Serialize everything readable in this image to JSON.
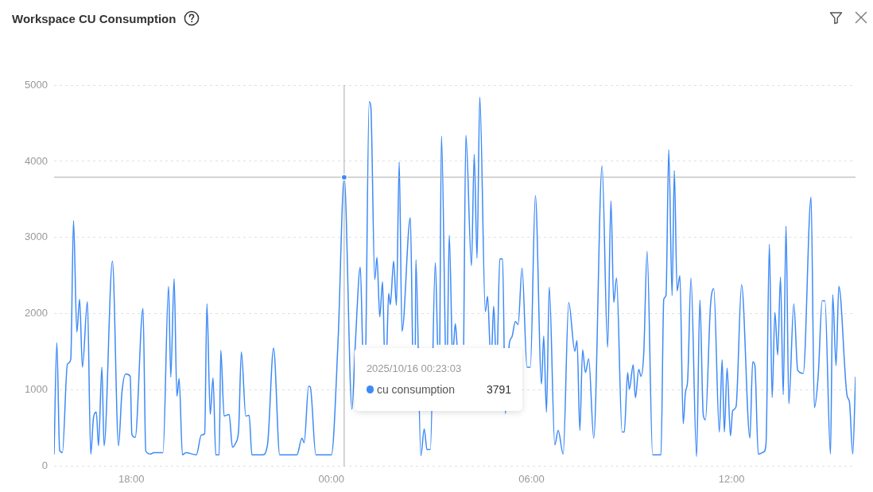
{
  "chart_data": {
    "type": "line",
    "title": "Workspace CU Consumption",
    "x": [
      "2025-10-15T15:41",
      "2025-10-15T15:46",
      "2025-10-15T15:51",
      "2025-10-15T15:56",
      "2025-10-15T16:05",
      "2025-10-15T16:11",
      "2025-10-15T16:16",
      "2025-10-15T16:22",
      "2025-10-15T16:27",
      "2025-10-15T16:32",
      "2025-10-15T16:41",
      "2025-10-15T16:47",
      "2025-10-15T16:52",
      "2025-10-15T16:57",
      "2025-10-15T17:01",
      "2025-10-15T17:07",
      "2025-10-15T17:11",
      "2025-10-15T17:26",
      "2025-10-15T17:37",
      "2025-10-15T17:43",
      "2025-10-15T17:50",
      "2025-10-15T17:58",
      "2025-10-15T18:01",
      "2025-10-15T18:07",
      "2025-10-15T18:21",
      "2025-10-15T18:26",
      "2025-10-15T18:35",
      "2025-10-15T18:40",
      "2025-10-15T18:57",
      "2025-10-15T19:07",
      "2025-10-15T19:11",
      "2025-10-15T19:17",
      "2025-10-15T19:22",
      "2025-10-15T19:26",
      "2025-10-15T19:32",
      "2025-10-15T19:38",
      "2025-10-15T19:57",
      "2025-10-15T20:06",
      "2025-10-15T20:12",
      "2025-10-15T20:16",
      "2025-10-15T20:22",
      "2025-10-15T20:27",
      "2025-10-15T20:32",
      "2025-10-15T20:38",
      "2025-10-15T20:41",
      "2025-10-15T20:47",
      "2025-10-15T20:56",
      "2025-10-15T21:02",
      "2025-10-15T21:08",
      "2025-10-15T21:13",
      "2025-10-15T21:18",
      "2025-10-15T21:26",
      "2025-10-15T21:32",
      "2025-10-15T21:37",
      "2025-10-15T21:56",
      "2025-10-15T22:05",
      "2025-10-15T22:16",
      "2025-10-15T22:27",
      "2025-10-15T22:58",
      "2025-10-15T23:07",
      "2025-10-15T23:11",
      "2025-10-15T23:19",
      "2025-10-15T23:22",
      "2025-10-15T23:32",
      "2025-10-16T00:00",
      "2025-10-16T00:12",
      "2025-10-16T00:23",
      "2025-10-16T00:37",
      "2025-10-16T00:43",
      "2025-10-16T00:52",
      "2025-10-16T00:56",
      "2025-10-16T00:59",
      "2025-10-16T01:02",
      "2025-10-16T01:08",
      "2025-10-16T01:11",
      "2025-10-16T01:18",
      "2025-10-16T01:22",
      "2025-10-16T01:27",
      "2025-10-16T01:32",
      "2025-10-16T01:35",
      "2025-10-16T01:38",
      "2025-10-16T01:40",
      "2025-10-16T01:43",
      "2025-10-16T01:46",
      "2025-10-16T01:52",
      "2025-10-16T01:57",
      "2025-10-16T02:02",
      "2025-10-16T02:07",
      "2025-10-16T02:22",
      "2025-10-16T02:26",
      "2025-10-16T02:29",
      "2025-10-16T02:31",
      "2025-10-16T02:32",
      "2025-10-16T02:41",
      "2025-10-16T02:47",
      "2025-10-16T02:52",
      "2025-10-16T02:58",
      "2025-10-16T03:07",
      "2025-10-16T03:11",
      "2025-10-16T03:13",
      "2025-10-16T03:15",
      "2025-10-16T03:18",
      "2025-10-16T03:25",
      "2025-10-16T03:26",
      "2025-10-16T03:29",
      "2025-10-16T03:32",
      "2025-10-16T03:37",
      "2025-10-16T03:38",
      "2025-10-16T03:40",
      "2025-10-16T03:43",
      "2025-10-16T03:46",
      "2025-10-16T03:52",
      "2025-10-16T03:58",
      "2025-10-16T04:02",
      "2025-10-16T04:12",
      "2025-10-16T04:17",
      "2025-10-16T04:22",
      "2025-10-16T04:27",
      "2025-10-16T04:37",
      "2025-10-16T04:41",
      "2025-10-16T04:45",
      "2025-10-16T04:47",
      "2025-10-16T04:49",
      "2025-10-16T04:52",
      "2025-10-16T04:55",
      "2025-10-16T04:56",
      "2025-10-16T04:59",
      "2025-10-16T05:03",
      "2025-10-16T05:08",
      "2025-10-16T05:13",
      "2025-10-16T05:20",
      "2025-10-16T05:25",
      "2025-10-16T05:31",
      "2025-10-16T05:36",
      "2025-10-16T05:43",
      "2025-10-16T05:52",
      "2025-10-16T05:58",
      "2025-10-16T06:07",
      "2025-10-16T06:18",
      "2025-10-16T06:22",
      "2025-10-16T06:27",
      "2025-10-16T06:32",
      "2025-10-16T06:42",
      "2025-10-16T06:48",
      "2025-10-16T06:57",
      "2025-10-16T07:07",
      "2025-10-16T07:18",
      "2025-10-16T07:22",
      "2025-10-16T07:27",
      "2025-10-16T07:32",
      "2025-10-16T07:37",
      "2025-10-16T07:43",
      "2025-10-16T07:52",
      "2025-10-16T08:07",
      "2025-10-16T08:17",
      "2025-10-16T08:23",
      "2025-10-16T08:28",
      "2025-10-16T08:33",
      "2025-10-16T08:43",
      "2025-10-16T08:47",
      "2025-10-16T08:53",
      "2025-10-16T08:56",
      "2025-10-16T09:03",
      "2025-10-16T09:07",
      "2025-10-16T09:13",
      "2025-10-16T09:17",
      "2025-10-16T09:22",
      "2025-10-16T09:28",
      "2025-10-16T09:38",
      "2025-10-16T09:53",
      "2025-10-16T09:58",
      "2025-10-16T10:02",
      "2025-10-16T10:07",
      "2025-10-16T10:13",
      "2025-10-16T10:17",
      "2025-10-16T10:22",
      "2025-10-16T10:27",
      "2025-10-16T10:33",
      "2025-10-16T10:37",
      "2025-10-16T10:41",
      "2025-10-16T10:47",
      "2025-10-16T10:57",
      "2025-10-16T11:03",
      "2025-10-16T11:09",
      "2025-10-16T11:13",
      "2025-10-16T11:22",
      "2025-10-16T11:28",
      "2025-10-16T11:38",
      "2025-10-16T11:43",
      "2025-10-16T11:47",
      "2025-10-16T11:52",
      "2025-10-16T11:58",
      "2025-10-16T12:02",
      "2025-10-16T12:08",
      "2025-10-16T12:18",
      "2025-10-16T12:33",
      "2025-10-16T12:38",
      "2025-10-16T12:42",
      "2025-10-16T12:48",
      "2025-10-16T12:58",
      "2025-10-16T13:02",
      "2025-10-16T13:08",
      "2025-10-16T13:13",
      "2025-10-16T13:18",
      "2025-10-16T13:23",
      "2025-10-16T13:28",
      "2025-10-16T13:33",
      "2025-10-16T13:38",
      "2025-10-16T13:43",
      "2025-10-16T13:52",
      "2025-10-16T13:59",
      "2025-10-16T14:09",
      "2025-10-16T14:23",
      "2025-10-16T14:29",
      "2025-10-16T14:36",
      "2025-10-16T14:43",
      "2025-10-16T14:48",
      "2025-10-16T14:58",
      "2025-10-16T15:02",
      "2025-10-16T15:08",
      "2025-10-16T15:13",
      "2025-10-16T15:28",
      "2025-10-16T15:32",
      "2025-10-16T15:38",
      "2025-10-16T15:43"
    ],
    "series": [
      {
        "name": "cu consumption",
        "color": "#3d8af7",
        "values": [
          160,
          1620,
          210,
          180,
          1340,
          1400,
          3220,
          1760,
          2190,
          1300,
          2160,
          160,
          640,
          710,
          270,
          1300,
          270,
          2690,
          270,
          960,
          1210,
          1180,
          420,
          380,
          2070,
          200,
          160,
          180,
          180,
          2360,
          1170,
          2460,
          920,
          1150,
          150,
          180,
          150,
          410,
          430,
          2130,
          680,
          1160,
          150,
          150,
          1520,
          660,
          680,
          250,
          310,
          470,
          1500,
          660,
          670,
          150,
          150,
          280,
          1550,
          150,
          150,
          370,
          310,
          1050,
          1040,
          150,
          150,
          1650,
          3791,
          750,
          1600,
          2610,
          1600,
          null,
          1600,
          4780,
          4710,
          2450,
          2740,
          1960,
          2420,
          1600,
          null,
          1600,
          2270,
          2120,
          2690,
          2110,
          3990,
          1770,
          3260,
          1600,
          null,
          1600,
          2710,
          140,
          490,
          220,
          220,
          2670,
          1600,
          null,
          1600,
          4330,
          1600,
          null,
          1600,
          3030,
          1600,
          null,
          1600,
          1870,
          1600,
          null,
          1600,
          4340,
          2630,
          4090,
          2730,
          4840,
          2030,
          2230,
          1600,
          null,
          1600,
          2100,
          1600,
          null,
          1600,
          2720,
          2720,
          690,
          1600,
          1700,
          1900,
          1860,
          2600,
          1300,
          1300,
          3550,
          1080,
          1710,
          710,
          2350,
          280,
          470,
          160,
          2150,
          1510,
          1650,
          470,
          1530,
          1230,
          1410,
          370,
          3940,
          1560,
          3480,
          2150,
          2470,
          450,
          450,
          1230,
          1010,
          1330,
          900,
          1270,
          1180,
          1480,
          2820,
          150,
          150,
          2190,
          2240,
          4150,
          2240,
          3880,
          2300,
          2500,
          560,
          970,
          1130,
          2470,
          130,
          2180,
          680,
          610,
          2100,
          2330,
          450,
          1400,
          450,
          1290,
          400,
          730,
          780,
          2380,
          370,
          1370,
          1320,
          160,
          190,
          300,
          2910,
          900,
          2020,
          1460,
          2480,
          940,
          3150,
          820,
          2130,
          1260,
          1220,
          3530,
          770,
          1200,
          2170,
          2170,
          160,
          2250,
          1320,
          2360,
          920,
          850,
          160,
          1170
        ]
      }
    ],
    "xlim": [
      "2025-10-15T15:41",
      "2025-10-16T15:43"
    ],
    "xticks": [
      {
        "value": "2025-10-15T18:00",
        "label": "18:00"
      },
      {
        "value": "2025-10-16T00:00",
        "label": "00:00"
      },
      {
        "value": "2025-10-16T06:00",
        "label": "06:00"
      },
      {
        "value": "2025-10-16T12:00",
        "label": "12:00"
      }
    ],
    "ylim": [
      0,
      5000
    ],
    "yticks": [
      0,
      1000,
      2000,
      3000,
      4000,
      5000
    ],
    "grid": "y",
    "marker": "none",
    "ref_lines": [
      {
        "axis": "x",
        "value": "2025-10-16T00:23",
        "color": "#aaaaaa"
      },
      {
        "axis": "y",
        "value": 3791,
        "color": "#aaaaaa"
      }
    ],
    "annotations": [
      "2025/10/16 00:23:03",
      "3791"
    ]
  }
}
